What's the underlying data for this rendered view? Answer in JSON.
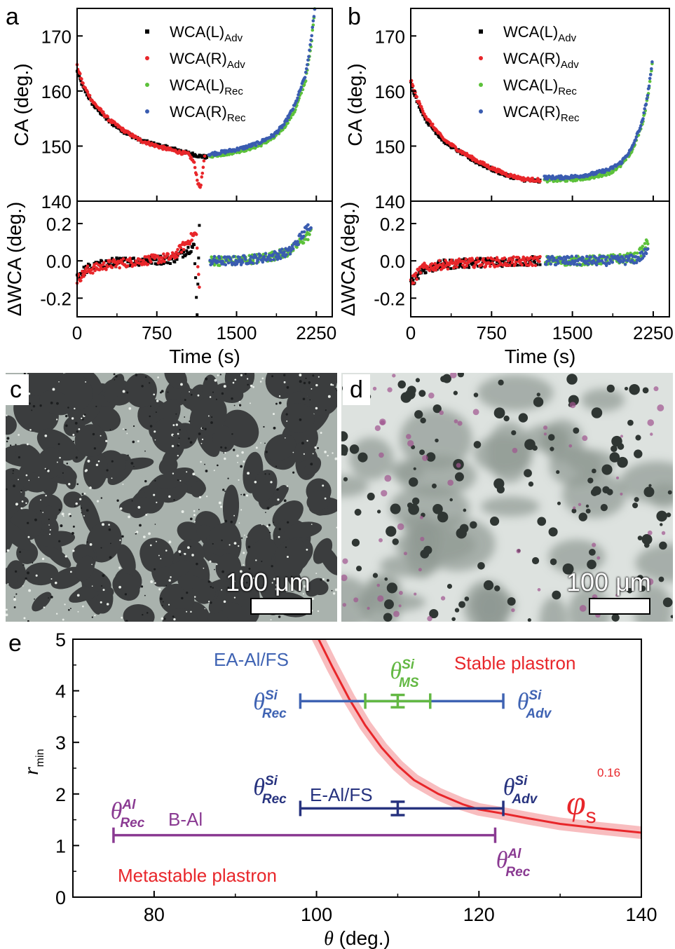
{
  "panels": {
    "a": {
      "label": "a"
    },
    "b": {
      "label": "b"
    },
    "c": {
      "label": "c",
      "scalebar": "100 μm"
    },
    "d": {
      "label": "d",
      "scalebar": "100 μm"
    },
    "e": {
      "label": "e"
    }
  },
  "colors": {
    "wca_l_adv": "#000000",
    "wca_r_adv": "#e8262a",
    "wca_l_rec": "#5cc13a",
    "wca_r_rec": "#3a5cb0",
    "ea_al_fs": "#3f63b3",
    "ms": "#63b843",
    "e_al_fs": "#27337f",
    "b_al": "#8a3a92",
    "red": "#e8262a"
  },
  "chart_data": [
    {
      "panel": "a",
      "type": "scatter",
      "xlabel": "Time (s)",
      "xticks": [
        "0",
        "750",
        "1500",
        "2250"
      ],
      "xlim": [
        0,
        2400
      ],
      "top": {
        "ylabel": "CA (deg.)",
        "yticks": [
          "140",
          "150",
          "160",
          "170"
        ],
        "ylim": [
          140,
          175
        ],
        "series": [
          {
            "name": "WCA(L)Adv",
            "points": [
              [
                0,
                163.5
              ],
              [
                60,
                160.5
              ],
              [
                150,
                157.5
              ],
              [
                300,
                154.5
              ],
              [
                450,
                152.5
              ],
              [
                600,
                151
              ],
              [
                750,
                150.2
              ],
              [
                900,
                149.5
              ],
              [
                1050,
                148.7
              ],
              [
                1150,
                148.2
              ],
              [
                1220,
                148
              ]
            ]
          },
          {
            "name": "WCA(R)Adv",
            "points": [
              [
                0,
                164.5
              ],
              [
                60,
                161
              ],
              [
                150,
                158
              ],
              [
                300,
                154.8
              ],
              [
                450,
                152.7
              ],
              [
                600,
                151
              ],
              [
                750,
                150
              ],
              [
                900,
                149.2
              ],
              [
                1050,
                148.5
              ],
              [
                1100,
                147
              ],
              [
                1120,
                145
              ],
              [
                1140,
                143
              ],
              [
                1160,
                142.5
              ],
              [
                1200,
                148
              ]
            ]
          },
          {
            "name": "WCA(L)Rec",
            "points": [
              [
                1240,
                148.2
              ],
              [
                1400,
                148.6
              ],
              [
                1550,
                149.2
              ],
              [
                1700,
                150
              ],
              [
                1850,
                151.5
              ],
              [
                1950,
                153.5
              ],
              [
                2050,
                156.5
              ],
              [
                2150,
                162
              ],
              [
                2200,
                168
              ],
              [
                2235,
                175
              ]
            ]
          },
          {
            "name": "WCA(R)Rec",
            "points": [
              [
                1240,
                148.5
              ],
              [
                1400,
                149
              ],
              [
                1550,
                149.6
              ],
              [
                1700,
                150.5
              ],
              [
                1850,
                152
              ],
              [
                1950,
                154
              ],
              [
                2050,
                157.5
              ],
              [
                2150,
                163
              ],
              [
                2200,
                169
              ],
              [
                2235,
                175
              ]
            ]
          }
        ]
      },
      "bottom": {
        "ylabel": "ΔWCA (deg.)",
        "yticks": [
          "-0.2",
          "0.0",
          "0.2"
        ],
        "ylim": [
          -0.3,
          0.32
        ],
        "series": [
          {
            "name": "WCA(L)Adv",
            "points": [
              [
                0,
                -0.08
              ],
              [
                100,
                -0.04
              ],
              [
                300,
                -0.01
              ],
              [
                600,
                0.0
              ],
              [
                900,
                0.01
              ],
              [
                1100,
                0.08
              ],
              [
                1130,
                -0.28
              ],
              [
                1150,
                0.2
              ]
            ]
          },
          {
            "name": "WCA(R)Adv",
            "points": [
              [
                0,
                -0.1
              ],
              [
                100,
                -0.05
              ],
              [
                300,
                -0.02
              ],
              [
                600,
                0.0
              ],
              [
                900,
                0.02
              ],
              [
                1120,
                0.15
              ],
              [
                1150,
                -0.15
              ]
            ]
          },
          {
            "name": "WCA(L)Rec",
            "points": [
              [
                1250,
                0.0
              ],
              [
                1500,
                0.0
              ],
              [
                1800,
                0.02
              ],
              [
                2000,
                0.05
              ],
              [
                2200,
                0.15
              ]
            ]
          },
          {
            "name": "WCA(R)Rec",
            "points": [
              [
                1250,
                0.0
              ],
              [
                1500,
                0.0
              ],
              [
                1800,
                0.02
              ],
              [
                2000,
                0.05
              ],
              [
                2200,
                0.2
              ]
            ]
          }
        ]
      },
      "legend": [
        "WCA(L)Adv",
        "WCA(R)Adv",
        "WCA(L)Rec",
        "WCA(R)Rec"
      ]
    },
    {
      "panel": "b",
      "type": "scatter",
      "xlabel": "Time (s)",
      "xticks": [
        "0",
        "750",
        "1500",
        "2250"
      ],
      "xlim": [
        0,
        2400
      ],
      "top": {
        "ylabel": "CA (deg.)",
        "yticks": [
          "140",
          "150",
          "160",
          "170"
        ],
        "ylim": [
          140,
          175
        ],
        "series": [
          {
            "name": "WCA(L)Adv",
            "points": [
              [
                0,
                161.5
              ],
              [
                60,
                158
              ],
              [
                150,
                154.5
              ],
              [
                300,
                151
              ],
              [
                450,
                149
              ],
              [
                600,
                147.2
              ],
              [
                750,
                145.8
              ],
              [
                900,
                144.6
              ],
              [
                1050,
                143.9
              ],
              [
                1200,
                143.6
              ]
            ]
          },
          {
            "name": "WCA(R)Adv",
            "points": [
              [
                0,
                162
              ],
              [
                60,
                158.5
              ],
              [
                150,
                155
              ],
              [
                300,
                151.3
              ],
              [
                450,
                149.2
              ],
              [
                600,
                147.5
              ],
              [
                750,
                146
              ],
              [
                900,
                144.8
              ],
              [
                1050,
                144
              ],
              [
                1200,
                143.8
              ]
            ]
          },
          {
            "name": "WCA(L)Rec",
            "points": [
              [
                1240,
                143.8
              ],
              [
                1400,
                143.8
              ],
              [
                1550,
                144
              ],
              [
                1700,
                144.4
              ],
              [
                1850,
                145.2
              ],
              [
                1950,
                146.5
              ],
              [
                2050,
                149
              ],
              [
                2150,
                154
              ],
              [
                2200,
                159
              ],
              [
                2240,
                165
              ]
            ]
          },
          {
            "name": "WCA(R)Rec",
            "points": [
              [
                1240,
                144.3
              ],
              [
                1400,
                144.3
              ],
              [
                1550,
                144.5
              ],
              [
                1700,
                145
              ],
              [
                1850,
                145.8
              ],
              [
                1950,
                147
              ],
              [
                2050,
                149.5
              ],
              [
                2150,
                154.5
              ],
              [
                2200,
                159.5
              ],
              [
                2240,
                165
              ]
            ]
          }
        ]
      },
      "bottom": {
        "ylabel": "ΔWCA (deg.)",
        "yticks": [
          "-0.2",
          "0.0",
          "0.2"
        ],
        "ylim": [
          -0.3,
          0.32
        ],
        "series": [
          {
            "name": "WCA(L)Adv",
            "points": [
              [
                0,
                -0.12
              ],
              [
                100,
                -0.05
              ],
              [
                300,
                -0.02
              ],
              [
                600,
                -0.01
              ],
              [
                1200,
                0.0
              ]
            ]
          },
          {
            "name": "WCA(R)Adv",
            "points": [
              [
                0,
                -0.12
              ],
              [
                100,
                -0.04
              ],
              [
                300,
                -0.02
              ],
              [
                600,
                -0.01
              ],
              [
                1200,
                0.0
              ]
            ]
          },
          {
            "name": "WCA(L)Rec",
            "points": [
              [
                1250,
                0.0
              ],
              [
                1600,
                0.0
              ],
              [
                1900,
                0.01
              ],
              [
                2100,
                0.02
              ],
              [
                2200,
                0.1
              ]
            ]
          },
          {
            "name": "WCA(R)Rec",
            "points": [
              [
                1250,
                0.0
              ],
              [
                1600,
                0.0
              ],
              [
                1900,
                0.0
              ],
              [
                2100,
                0.01
              ],
              [
                2200,
                0.05
              ]
            ]
          }
        ]
      },
      "legend": [
        "WCA(L)Adv",
        "WCA(R)Adv",
        "WCA(L)Rec",
        "WCA(R)Rec"
      ]
    },
    {
      "panel": "e",
      "type": "line",
      "xlabel": "θ (deg.)",
      "ylabel": "r",
      "ylabel_sub": "min",
      "xticks": [
        "80",
        "100",
        "120",
        "140"
      ],
      "yticks": [
        "0",
        "1",
        "2",
        "3",
        "4",
        "5"
      ],
      "xlim": [
        70,
        140
      ],
      "ylim": [
        0,
        5
      ],
      "curve": {
        "label": "φs",
        "exponent": "0.16",
        "points": [
          [
            100,
            5.08
          ],
          [
            102,
            4.45
          ],
          [
            104,
            3.85
          ],
          [
            106,
            3.33
          ],
          [
            108,
            2.9
          ],
          [
            110,
            2.55
          ],
          [
            112,
            2.27
          ],
          [
            115,
            2.0
          ],
          [
            118,
            1.8
          ],
          [
            120,
            1.7
          ],
          [
            123,
            1.62
          ],
          [
            126,
            1.53
          ],
          [
            130,
            1.42
          ],
          [
            135,
            1.33
          ],
          [
            140,
            1.25
          ]
        ]
      },
      "bars": [
        {
          "name": "EA-Al/FS",
          "y": 3.8,
          "x_min": 98,
          "x_max": 123,
          "left_label": "θRec",
          "left_sup": "Si",
          "right_label": "θAdv",
          "right_sup": "Si"
        },
        {
          "name": "θMS",
          "sup": "Si",
          "y": 3.8,
          "x_min": 106,
          "x_max": 114,
          "center": 110,
          "y_err": 0.12
        },
        {
          "name": "E-Al/FS",
          "y": 1.72,
          "x_min": 98,
          "x_max": 123,
          "center": 110,
          "y_err": 0.13,
          "left_label": "θRec",
          "left_sup": "Si",
          "right_label": "θAdv",
          "right_sup": "Si"
        },
        {
          "name": "B-Al",
          "y": 1.2,
          "x_min": 75,
          "x_max": 122,
          "left_label": "θRec",
          "left_sup": "Al",
          "right_label": "θRec",
          "right_sup": "Al"
        }
      ],
      "annotations": [
        "Stable  plastron",
        "Metastable plastron"
      ]
    }
  ]
}
